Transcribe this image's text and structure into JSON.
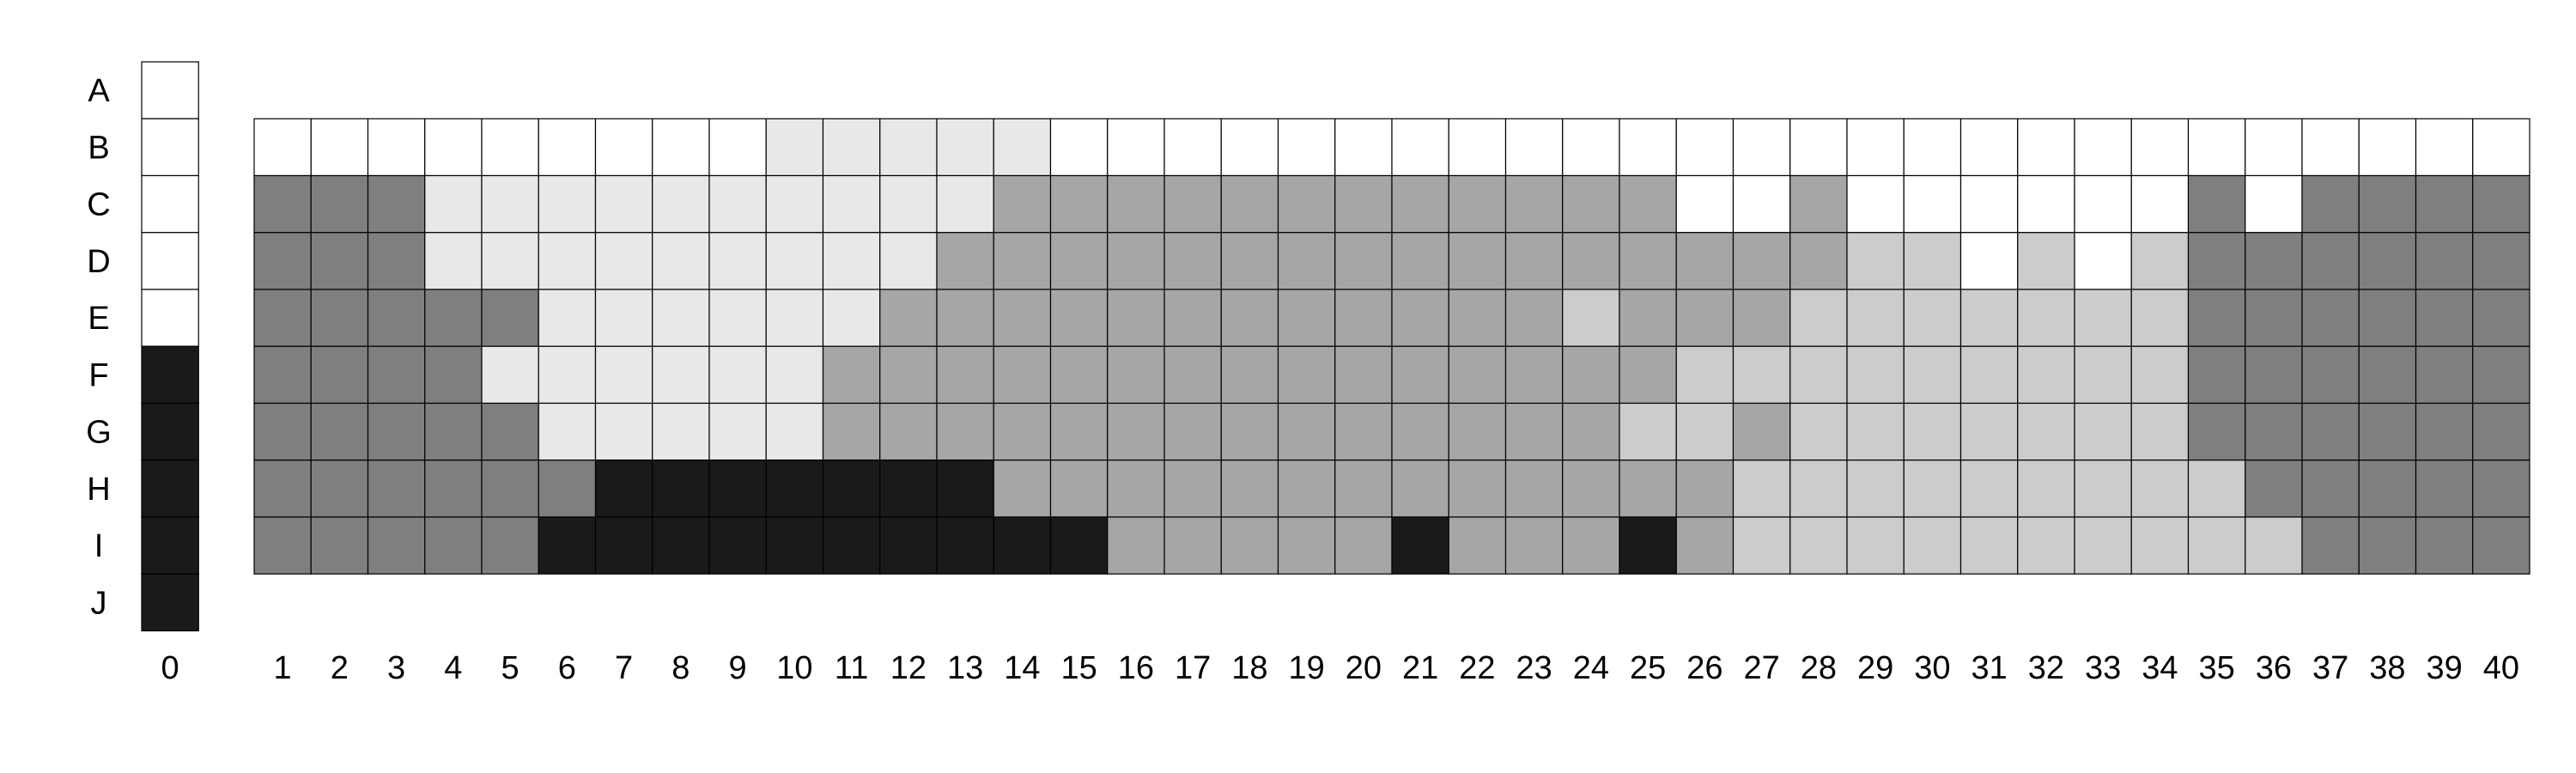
{
  "palette": {
    "W": "#ffffff",
    "L": "#e8e8e8",
    "C": "#cccccc",
    "M": "#a6a6a6",
    "D": "#7f7f7f",
    "K": "#1a1a1a"
  },
  "row_labels": [
    "A",
    "B",
    "C",
    "D",
    "E",
    "F",
    "G",
    "H",
    "I",
    "J"
  ],
  "column_zero": {
    "label": "0",
    "cells": [
      "W",
      "W",
      "W",
      "W",
      "W",
      "K",
      "K",
      "K",
      "K",
      "K"
    ]
  },
  "column_labels": [
    "1",
    "2",
    "3",
    "4",
    "5",
    "6",
    "7",
    "8",
    "9",
    "10",
    "11",
    "12",
    "13",
    "14",
    "15",
    "16",
    "17",
    "18",
    "19",
    "20",
    "21",
    "22",
    "23",
    "24",
    "25",
    "26",
    "27",
    "28",
    "29",
    "30",
    "31",
    "32",
    "33",
    "34",
    "35",
    "36",
    "37",
    "38",
    "39",
    "40"
  ],
  "main_grid": {
    "rows": [
      "B",
      "C",
      "D",
      "E",
      "F",
      "G",
      "H",
      "I"
    ],
    "cells": [
      [
        "W",
        "W",
        "W",
        "W",
        "W",
        "W",
        "W",
        "W",
        "W",
        "L",
        "L",
        "L",
        "L",
        "L",
        "W",
        "W",
        "W",
        "W",
        "W",
        "W",
        "W",
        "W",
        "W",
        "W",
        "W",
        "W",
        "W",
        "W",
        "W",
        "W",
        "W",
        "W",
        "W",
        "W",
        "W",
        "W",
        "W",
        "W",
        "W",
        "W"
      ],
      [
        "D",
        "D",
        "D",
        "L",
        "L",
        "L",
        "L",
        "L",
        "L",
        "L",
        "L",
        "L",
        "L",
        "M",
        "M",
        "M",
        "M",
        "M",
        "M",
        "M",
        "M",
        "M",
        "M",
        "M",
        "M",
        "W",
        "W",
        "M",
        "W",
        "W",
        "W",
        "W",
        "W",
        "W",
        "D",
        "W",
        "D",
        "D",
        "D",
        "D"
      ],
      [
        "D",
        "D",
        "D",
        "L",
        "L",
        "L",
        "L",
        "L",
        "L",
        "L",
        "L",
        "L",
        "M",
        "M",
        "M",
        "M",
        "M",
        "M",
        "M",
        "M",
        "M",
        "M",
        "M",
        "M",
        "M",
        "M",
        "M",
        "M",
        "C",
        "C",
        "W",
        "C",
        "W",
        "C",
        "D",
        "D",
        "D",
        "D",
        "D",
        "D"
      ],
      [
        "D",
        "D",
        "D",
        "D",
        "D",
        "L",
        "L",
        "L",
        "L",
        "L",
        "L",
        "M",
        "M",
        "M",
        "M",
        "M",
        "M",
        "M",
        "M",
        "M",
        "M",
        "M",
        "M",
        "C",
        "M",
        "M",
        "M",
        "C",
        "C",
        "C",
        "C",
        "C",
        "C",
        "C",
        "D",
        "D",
        "D",
        "D",
        "D",
        "D"
      ],
      [
        "D",
        "D",
        "D",
        "D",
        "L",
        "L",
        "L",
        "L",
        "L",
        "L",
        "M",
        "M",
        "M",
        "M",
        "M",
        "M",
        "M",
        "M",
        "M",
        "M",
        "M",
        "M",
        "M",
        "M",
        "M",
        "C",
        "C",
        "C",
        "C",
        "C",
        "C",
        "C",
        "C",
        "C",
        "D",
        "D",
        "D",
        "D",
        "D",
        "D"
      ],
      [
        "D",
        "D",
        "D",
        "D",
        "D",
        "L",
        "L",
        "L",
        "L",
        "L",
        "M",
        "M",
        "M",
        "M",
        "M",
        "M",
        "M",
        "M",
        "M",
        "M",
        "M",
        "M",
        "M",
        "M",
        "C",
        "C",
        "M",
        "C",
        "C",
        "C",
        "C",
        "C",
        "C",
        "C",
        "D",
        "D",
        "D",
        "D",
        "D",
        "D"
      ],
      [
        "D",
        "D",
        "D",
        "D",
        "D",
        "D",
        "K",
        "K",
        "K",
        "K",
        "K",
        "K",
        "K",
        "M",
        "M",
        "M",
        "M",
        "M",
        "M",
        "M",
        "M",
        "M",
        "M",
        "M",
        "M",
        "M",
        "C",
        "C",
        "C",
        "C",
        "C",
        "C",
        "C",
        "C",
        "C",
        "D",
        "D",
        "D",
        "D",
        "D"
      ],
      [
        "D",
        "D",
        "D",
        "D",
        "D",
        "K",
        "K",
        "K",
        "K",
        "K",
        "K",
        "K",
        "K",
        "K",
        "K",
        "M",
        "M",
        "M",
        "M",
        "M",
        "K",
        "M",
        "M",
        "M",
        "K",
        "M",
        "C",
        "C",
        "C",
        "C",
        "C",
        "C",
        "C",
        "C",
        "C",
        "C",
        "D",
        "D",
        "D",
        "D"
      ]
    ]
  }
}
